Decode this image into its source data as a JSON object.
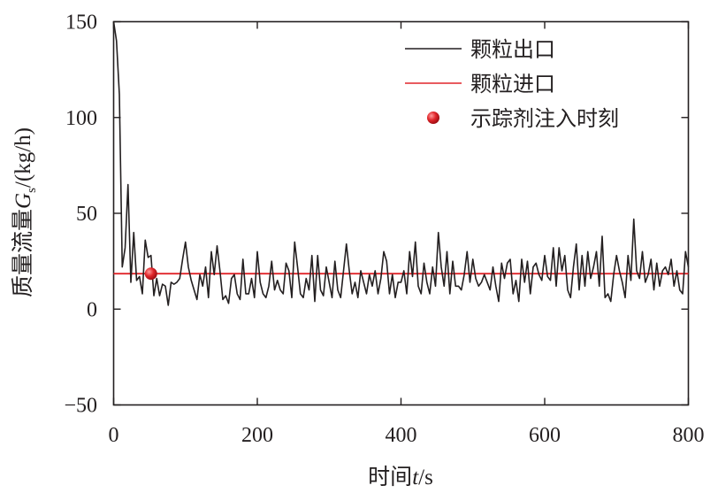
{
  "chart_data": {
    "type": "line",
    "xlabel": {
      "prefix": "时间",
      "symbol": "t",
      "unit": "/s"
    },
    "ylabel": {
      "prefix": "质量流量",
      "symbol": "G",
      "subscript": "s",
      "unit": "/(kg/h)"
    },
    "xlim": [
      0,
      800
    ],
    "ylim": [
      -50,
      150
    ],
    "xticks": [
      0,
      200,
      400,
      600,
      800
    ],
    "yticks": [
      -50,
      0,
      50,
      100,
      150
    ],
    "ytick_labels": [
      "−50",
      "0",
      "50",
      "100",
      "150"
    ],
    "grid": false,
    "legend_position": "top-right",
    "colors": {
      "outlet": "#231f20",
      "inlet": "#e0252a",
      "marker": "#e0252a"
    },
    "series": [
      {
        "name": "颗粒出口",
        "kind": "line",
        "x": [
          0,
          4,
          8,
          12,
          16,
          20,
          24,
          28,
          32,
          36,
          40,
          44,
          48,
          52,
          56,
          60,
          64,
          68,
          72,
          76,
          80,
          84,
          88,
          92,
          96,
          100,
          104,
          108,
          112,
          116,
          120,
          124,
          128,
          132,
          136,
          140,
          144,
          148,
          152,
          156,
          160,
          164,
          168,
          172,
          176,
          180,
          184,
          188,
          192,
          196,
          200,
          204,
          208,
          212,
          216,
          220,
          224,
          228,
          232,
          236,
          240,
          244,
          248,
          252,
          256,
          260,
          264,
          268,
          272,
          276,
          280,
          284,
          288,
          292,
          296,
          300,
          304,
          308,
          312,
          316,
          320,
          324,
          328,
          332,
          336,
          340,
          344,
          348,
          352,
          356,
          360,
          364,
          368,
          372,
          376,
          380,
          384,
          388,
          392,
          396,
          400,
          404,
          408,
          412,
          416,
          420,
          424,
          428,
          432,
          436,
          440,
          444,
          448,
          452,
          456,
          460,
          464,
          468,
          472,
          476,
          480,
          484,
          488,
          492,
          496,
          500,
          504,
          508,
          512,
          516,
          520,
          524,
          528,
          532,
          536,
          540,
          544,
          548,
          552,
          556,
          560,
          564,
          568,
          572,
          576,
          580,
          584,
          588,
          592,
          596,
          600,
          604,
          608,
          612,
          616,
          620,
          624,
          628,
          632,
          636,
          640,
          644,
          648,
          652,
          656,
          660,
          664,
          668,
          672,
          676,
          680,
          684,
          688,
          692,
          696,
          700,
          704,
          708,
          712,
          716,
          720,
          724,
          728,
          732,
          736,
          740,
          744,
          748,
          752,
          756,
          760,
          764,
          768,
          772,
          776,
          780,
          784,
          788,
          792,
          796,
          800
        ],
        "y": [
          150,
          140,
          112,
          22,
          32,
          65,
          14,
          40,
          15,
          17,
          8,
          36,
          27,
          28,
          7,
          16,
          7,
          13,
          12,
          2,
          14,
          13,
          14,
          16,
          26,
          35,
          22,
          15,
          10,
          5,
          18,
          12,
          22,
          6,
          30,
          18,
          33,
          20,
          5,
          7,
          3,
          16,
          18,
          8,
          5,
          26,
          8,
          8,
          16,
          6,
          30,
          14,
          8,
          6,
          12,
          25,
          10,
          15,
          10,
          8,
          24,
          20,
          6,
          35,
          22,
          8,
          6,
          16,
          10,
          28,
          4,
          28,
          10,
          7,
          22,
          14,
          6,
          25,
          10,
          6,
          20,
          34,
          20,
          8,
          14,
          6,
          20,
          14,
          8,
          18,
          12,
          20,
          8,
          16,
          30,
          25,
          8,
          18,
          6,
          14,
          14,
          20,
          8,
          30,
          17,
          35,
          12,
          8,
          24,
          14,
          8,
          22,
          12,
          40,
          22,
          12,
          30,
          8,
          25,
          12,
          12,
          10,
          18,
          30,
          14,
          26,
          16,
          12,
          14,
          18,
          14,
          10,
          22,
          12,
          4,
          24,
          16,
          24,
          26,
          8,
          15,
          4,
          26,
          14,
          25,
          8,
          22,
          24,
          18,
          15,
          28,
          17,
          15,
          32,
          12,
          32,
          20,
          28,
          10,
          6,
          22,
          34,
          10,
          28,
          12,
          30,
          16,
          22,
          30,
          12,
          38,
          6,
          8,
          4,
          18,
          28,
          20,
          14,
          6,
          28,
          15,
          47,
          20,
          16,
          30,
          14,
          18,
          26,
          10,
          24,
          12,
          20,
          22,
          18,
          26,
          12,
          20,
          10,
          8,
          30,
          22
        ]
      },
      {
        "name": "颗粒进口",
        "kind": "hline",
        "y": 18.5
      },
      {
        "name": "示踪剂注入时刻",
        "kind": "marker",
        "x": [
          52
        ],
        "y": [
          18.5
        ]
      }
    ]
  }
}
